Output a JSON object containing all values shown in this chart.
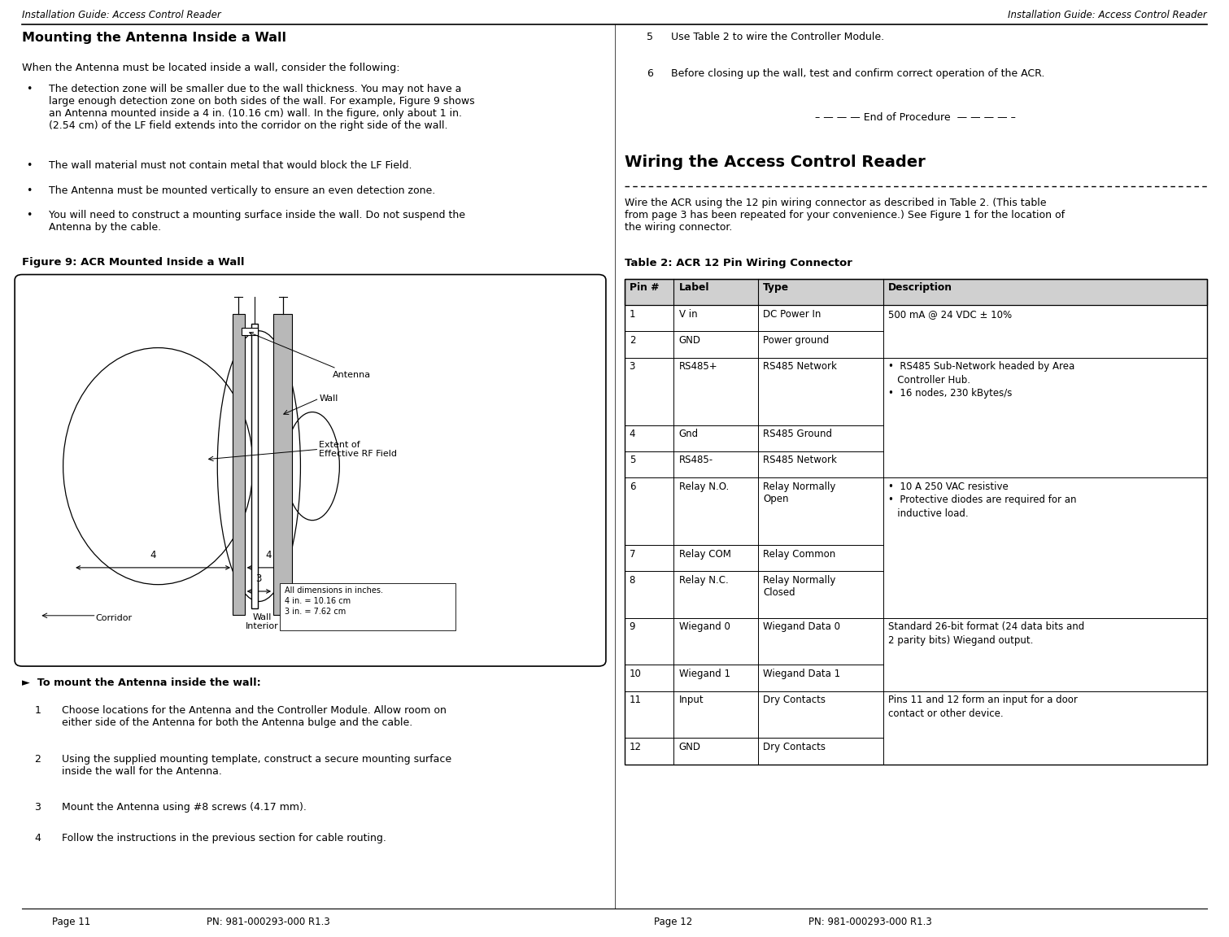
{
  "page_width": 15.11,
  "page_height": 11.52,
  "bg_color": "#ffffff",
  "left_header": "Installation Guide: Access Control Reader",
  "right_header": "Installation Guide: Access Control Reader",
  "left_footer_page": "Page 11",
  "left_footer_pn": "PN: 981-000293-000 R1.3",
  "right_footer_page": "Page 12",
  "right_footer_pn": "PN: 981-000293-000 R1.3",
  "left_col_title": "Mounting the Antenna Inside a Wall",
  "left_col_intro": "When the Antenna must be located inside a wall, consider the following:",
  "bullets": [
    "The detection zone will be smaller due to the wall thickness. You may not have a\nlarge enough detection zone on both sides of the wall. For example, Figure 9 shows\nan Antenna mounted inside a 4 in. (10.16 cm) wall. In the figure, only about 1 in.\n(2.54 cm) of the LF field extends into the corridor on the right side of the wall.",
    "The wall material must not contain metal that would block the LF Field.",
    "The Antenna must be mounted vertically to ensure an even detection zone.",
    "You will need to construct a mounting surface inside the wall. Do not suspend the\nAntenna by the cable."
  ],
  "figure_caption": "Figure 9: ACR Mounted Inside a Wall",
  "mount_arrow": "►  To mount the Antenna inside the wall:",
  "steps_left": [
    [
      "1",
      "Choose locations for the Antenna and the Controller Module. Allow room on\neither side of the Antenna for both the Antenna bulge and the cable."
    ],
    [
      "2",
      "Using the supplied mounting template, construct a secure mounting surface\ninside the wall for the Antenna."
    ],
    [
      "3",
      "Mount the Antenna using #8 screws (4.17 mm)."
    ],
    [
      "4",
      "Follow the instructions in the previous section for cable routing."
    ]
  ],
  "right_col_steps": [
    [
      "5",
      "Use Table 2 to wire the Controller Module."
    ],
    [
      "6",
      "Before closing up the wall, test and confirm correct operation of the ACR."
    ]
  ],
  "end_of_procedure": "– — — — End of Procedure  — — — — –",
  "wiring_title": "Wiring the Access Control Reader",
  "wiring_intro": "Wire the ACR using the 12 pin wiring connector as described in Table 2. (This table\nfrom page 3 has been repeated for your convenience.) See Figure 1 for the location of\nthe wiring connector.",
  "table_title": "Table 2: ACR 12 Pin Wiring Connector",
  "table_headers": [
    "Pin #",
    "Label",
    "Type",
    "Description"
  ],
  "table_col_props": [
    0.085,
    0.145,
    0.215,
    0.555
  ],
  "table_rows": [
    [
      "1",
      "V in",
      "DC Power In",
      "500 mA @ 24 VDC ± 10%"
    ],
    [
      "2",
      "GND",
      "Power ground",
      ""
    ],
    [
      "3",
      "RS485+",
      "RS485 Network",
      "•  RS485 Sub-Network headed by Area\n   Controller Hub.\n•  16 nodes, 230 kBytes/s"
    ],
    [
      "4",
      "Gnd",
      "RS485 Ground",
      ""
    ],
    [
      "5",
      "RS485-",
      "RS485 Network",
      ""
    ],
    [
      "6",
      "Relay N.O.",
      "Relay Normally\nOpen",
      "•  10 A 250 VAC resistive\n•  Protective diodes are required for an\n   inductive load."
    ],
    [
      "7",
      "Relay COM",
      "Relay Common",
      ""
    ],
    [
      "8",
      "Relay N.C.",
      "Relay Normally\nClosed",
      ""
    ],
    [
      "9",
      "Wiegand 0",
      "Wiegand Data 0",
      "Standard 26-bit format (24 data bits and\n2 parity bits) Wiegand output."
    ],
    [
      "10",
      "Wiegand 1",
      "Wiegand Data 1",
      ""
    ],
    [
      "11",
      "Input",
      "Dry Contacts",
      "Pins 11 and 12 form an input for a door\ncontact or other device."
    ],
    [
      "12",
      "GND",
      "Dry Contacts",
      ""
    ]
  ],
  "table_row_groups": [
    {
      "rows": [
        0,
        1
      ],
      "desc_span": 1
    },
    {
      "rows": [
        2,
        3,
        4
      ],
      "desc_span": 3
    },
    {
      "rows": [
        5,
        6,
        7
      ],
      "desc_span": 3
    },
    {
      "rows": [
        8,
        9
      ],
      "desc_span": 2
    },
    {
      "rows": [
        10,
        11
      ],
      "desc_span": 2
    }
  ]
}
